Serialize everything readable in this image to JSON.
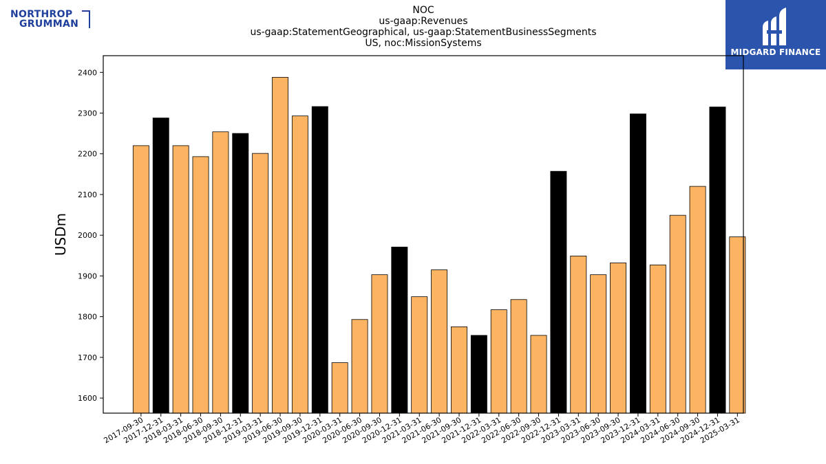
{
  "header": {
    "title_lines": [
      "NOC",
      "us-gaap:Revenues",
      "us-gaap:StatementGeographical, us-gaap:StatementBusinessSegments",
      "US, noc:MissionSystems"
    ]
  },
  "logos": {
    "left": {
      "line1": "NORTHROP",
      "line2": "GRUMMAN",
      "color": "#1f3f9c"
    },
    "right": {
      "text": "MIDGARD FINANCE",
      "background": "#2b55ad"
    }
  },
  "chart_data": {
    "type": "bar",
    "title": "NOC\nus-gaap:Revenues\nus-gaap:StatementGeographical, us-gaap:StatementBusinessSegments\nUS, noc:MissionSystems",
    "xlabel": "",
    "ylabel": "USDm",
    "ylim": [
      1563,
      2441
    ],
    "yticks": [
      1600,
      1700,
      1800,
      1900,
      2000,
      2100,
      2200,
      2300,
      2400
    ],
    "grid": false,
    "categories": [
      "2017-09-30",
      "2017-12-31",
      "2018-03-31",
      "2018-06-30",
      "2018-09-30",
      "2018-12-31",
      "2019-03-31",
      "2019-06-30",
      "2019-09-30",
      "2019-12-31",
      "2020-03-31",
      "2020-06-30",
      "2020-09-30",
      "2020-12-31",
      "2021-03-31",
      "2021-06-30",
      "2021-09-30",
      "2021-12-31",
      "2022-03-31",
      "2022-06-30",
      "2022-09-30",
      "2022-12-31",
      "2023-03-31",
      "2023-06-30",
      "2023-09-30",
      "2023-12-31",
      "2024-03-31",
      "2024-06-30",
      "2024-09-30",
      "2024-12-31",
      "2025-03-31"
    ],
    "values": [
      2220,
      2288,
      2220,
      2193,
      2254,
      2250,
      2201,
      2388,
      2293,
      2316,
      1687,
      1793,
      1903,
      1971,
      1849,
      1915,
      1775,
      1754,
      1817,
      1842,
      1754,
      2157,
      1949,
      1903,
      1932,
      2298,
      1927,
      2049,
      2120,
      2315,
      1996
    ],
    "colors": {
      "quarter": "#fdb462",
      "year_end": "#000000"
    },
    "is_year_end": [
      false,
      true,
      false,
      false,
      false,
      true,
      false,
      false,
      false,
      true,
      false,
      false,
      false,
      true,
      false,
      false,
      false,
      true,
      false,
      false,
      false,
      true,
      false,
      false,
      false,
      true,
      false,
      false,
      false,
      true,
      false
    ]
  }
}
